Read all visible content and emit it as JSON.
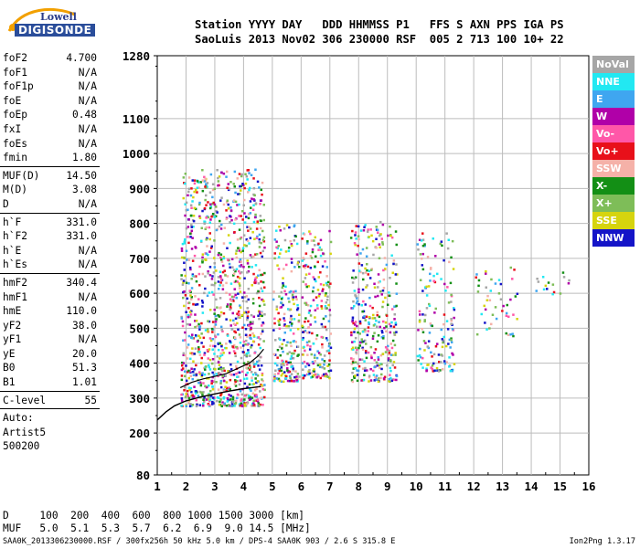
{
  "logo": {
    "top": "Lowell",
    "main": "DIGISONDE"
  },
  "header": {
    "line1": "Station YYYY DAY   DDD HHMMSS P1   FFS S AXN PPS IGA PS",
    "line2": "SaoLuis 2013 Nov02 306 230000 RSF  005 2 713 100 10+ 22"
  },
  "params_groups": [
    [
      {
        "k": "foF2",
        "v": "4.700"
      },
      {
        "k": "foF1",
        "v": "N/A"
      },
      {
        "k": "foF1p",
        "v": "N/A"
      },
      {
        "k": "foE",
        "v": "N/A"
      },
      {
        "k": "foEp",
        "v": "0.48"
      },
      {
        "k": "fxI",
        "v": "N/A"
      },
      {
        "k": "foEs",
        "v": "N/A"
      },
      {
        "k": "fmin",
        "v": "1.80"
      }
    ],
    [
      {
        "k": "MUF(D)",
        "v": "14.50"
      },
      {
        "k": "M(D)",
        "v": "3.08"
      },
      {
        "k": "D",
        "v": "N/A"
      }
    ],
    [
      {
        "k": "h`F",
        "v": "331.0"
      },
      {
        "k": "h`F2",
        "v": "331.0"
      },
      {
        "k": "h`E",
        "v": "N/A"
      },
      {
        "k": "h`Es",
        "v": "N/A"
      }
    ],
    [
      {
        "k": "hmF2",
        "v": "340.4"
      },
      {
        "k": "hmF1",
        "v": "N/A"
      },
      {
        "k": "hmE",
        "v": "110.0"
      },
      {
        "k": "yF2",
        "v": "38.0"
      },
      {
        "k": "yF1",
        "v": "N/A"
      },
      {
        "k": "yE",
        "v": "20.0"
      },
      {
        "k": "B0",
        "v": "51.3"
      },
      {
        "k": "B1",
        "v": "1.01"
      }
    ],
    [
      {
        "k": "C-level",
        "v": "55"
      }
    ]
  ],
  "auto": [
    "Auto:",
    "Artist5",
    "500200"
  ],
  "legend": [
    {
      "label": "NoVal",
      "color": "#a6a6a6"
    },
    {
      "label": "NNE",
      "color": "#22e8f2"
    },
    {
      "label": "E",
      "color": "#3fa6f0"
    },
    {
      "label": "W",
      "color": "#b000a8"
    },
    {
      "label": "Vo-",
      "color": "#ff57a8"
    },
    {
      "label": "Vo+",
      "color": "#e8101a"
    },
    {
      "label": "SSW",
      "color": "#f5b1a8"
    },
    {
      "label": "X-",
      "color": "#138f15"
    },
    {
      "label": "X+",
      "color": "#7ebd58"
    },
    {
      "label": "SSE",
      "color": "#d6d40e"
    },
    {
      "label": "NNW",
      "color": "#1414c8"
    }
  ],
  "footer": {
    "line1": "D     100  200  400  600  800 1000 1500 3000 [km]",
    "line2": "MUF   5.0  5.1  5.3  5.7  6.2  6.9  9.0 14.5 [MHz]"
  },
  "file_info": "SAA0K_2013306230000.RSF / 300fx256h 50 kHz 5.0 km / DPS-4 SAA0K 903 / 2.6 S 315.8 E",
  "version": "Ion2Png 1.3.17",
  "chart_data": {
    "type": "scatter",
    "x_ticks": [
      1,
      2,
      3,
      4,
      5,
      6,
      7,
      8,
      9,
      10,
      11,
      12,
      13,
      14,
      15,
      16
    ],
    "y_ticks": [
      80,
      200,
      300,
      400,
      500,
      600,
      700,
      800,
      900,
      1000,
      1100,
      1280
    ],
    "xlim": [
      1,
      16
    ],
    "ylim": [
      80,
      1280
    ],
    "grid": true,
    "trace_points": [
      {
        "x": 1.0,
        "y": 237
      },
      {
        "x": 1.3,
        "y": 260
      },
      {
        "x": 1.6,
        "y": 278
      },
      {
        "x": 2.0,
        "y": 292
      },
      {
        "x": 2.5,
        "y": 303
      },
      {
        "x": 3.0,
        "y": 312
      },
      {
        "x": 3.5,
        "y": 320
      },
      {
        "x": 4.0,
        "y": 327
      },
      {
        "x": 4.3,
        "y": 330
      },
      {
        "x": 4.5,
        "y": 332
      },
      {
        "x": 4.6,
        "y": 333
      }
    ],
    "profile_points": [
      {
        "x": 1.8,
        "y": 330
      },
      {
        "x": 2.2,
        "y": 345
      },
      {
        "x": 2.6,
        "y": 355
      },
      {
        "x": 3.0,
        "y": 362
      },
      {
        "x": 3.4,
        "y": 370
      },
      {
        "x": 3.8,
        "y": 385
      },
      {
        "x": 4.2,
        "y": 400
      },
      {
        "x": 4.5,
        "y": 420
      },
      {
        "x": 4.7,
        "y": 440
      }
    ],
    "echo_columns": [
      {
        "fmin": 1.8,
        "fmax": 4.7,
        "ymin": 280,
        "ymax": 960,
        "density": 1.0
      },
      {
        "fmin": 5.0,
        "fmax": 5.9,
        "ymin": 350,
        "ymax": 800,
        "density": 0.6
      },
      {
        "fmin": 6.0,
        "fmax": 7.0,
        "ymin": 360,
        "ymax": 790,
        "density": 0.55
      },
      {
        "fmin": 7.7,
        "fmax": 9.3,
        "ymin": 350,
        "ymax": 810,
        "density": 0.55
      },
      {
        "fmin": 10.0,
        "fmax": 11.3,
        "ymin": 380,
        "ymax": 780,
        "density": 0.3
      },
      {
        "fmin": 12.0,
        "fmax": 13.5,
        "ymin": 480,
        "ymax": 680,
        "density": 0.08
      },
      {
        "fmin": 14.0,
        "fmax": 15.3,
        "ymin": 600,
        "ymax": 680,
        "density": 0.03
      }
    ]
  }
}
